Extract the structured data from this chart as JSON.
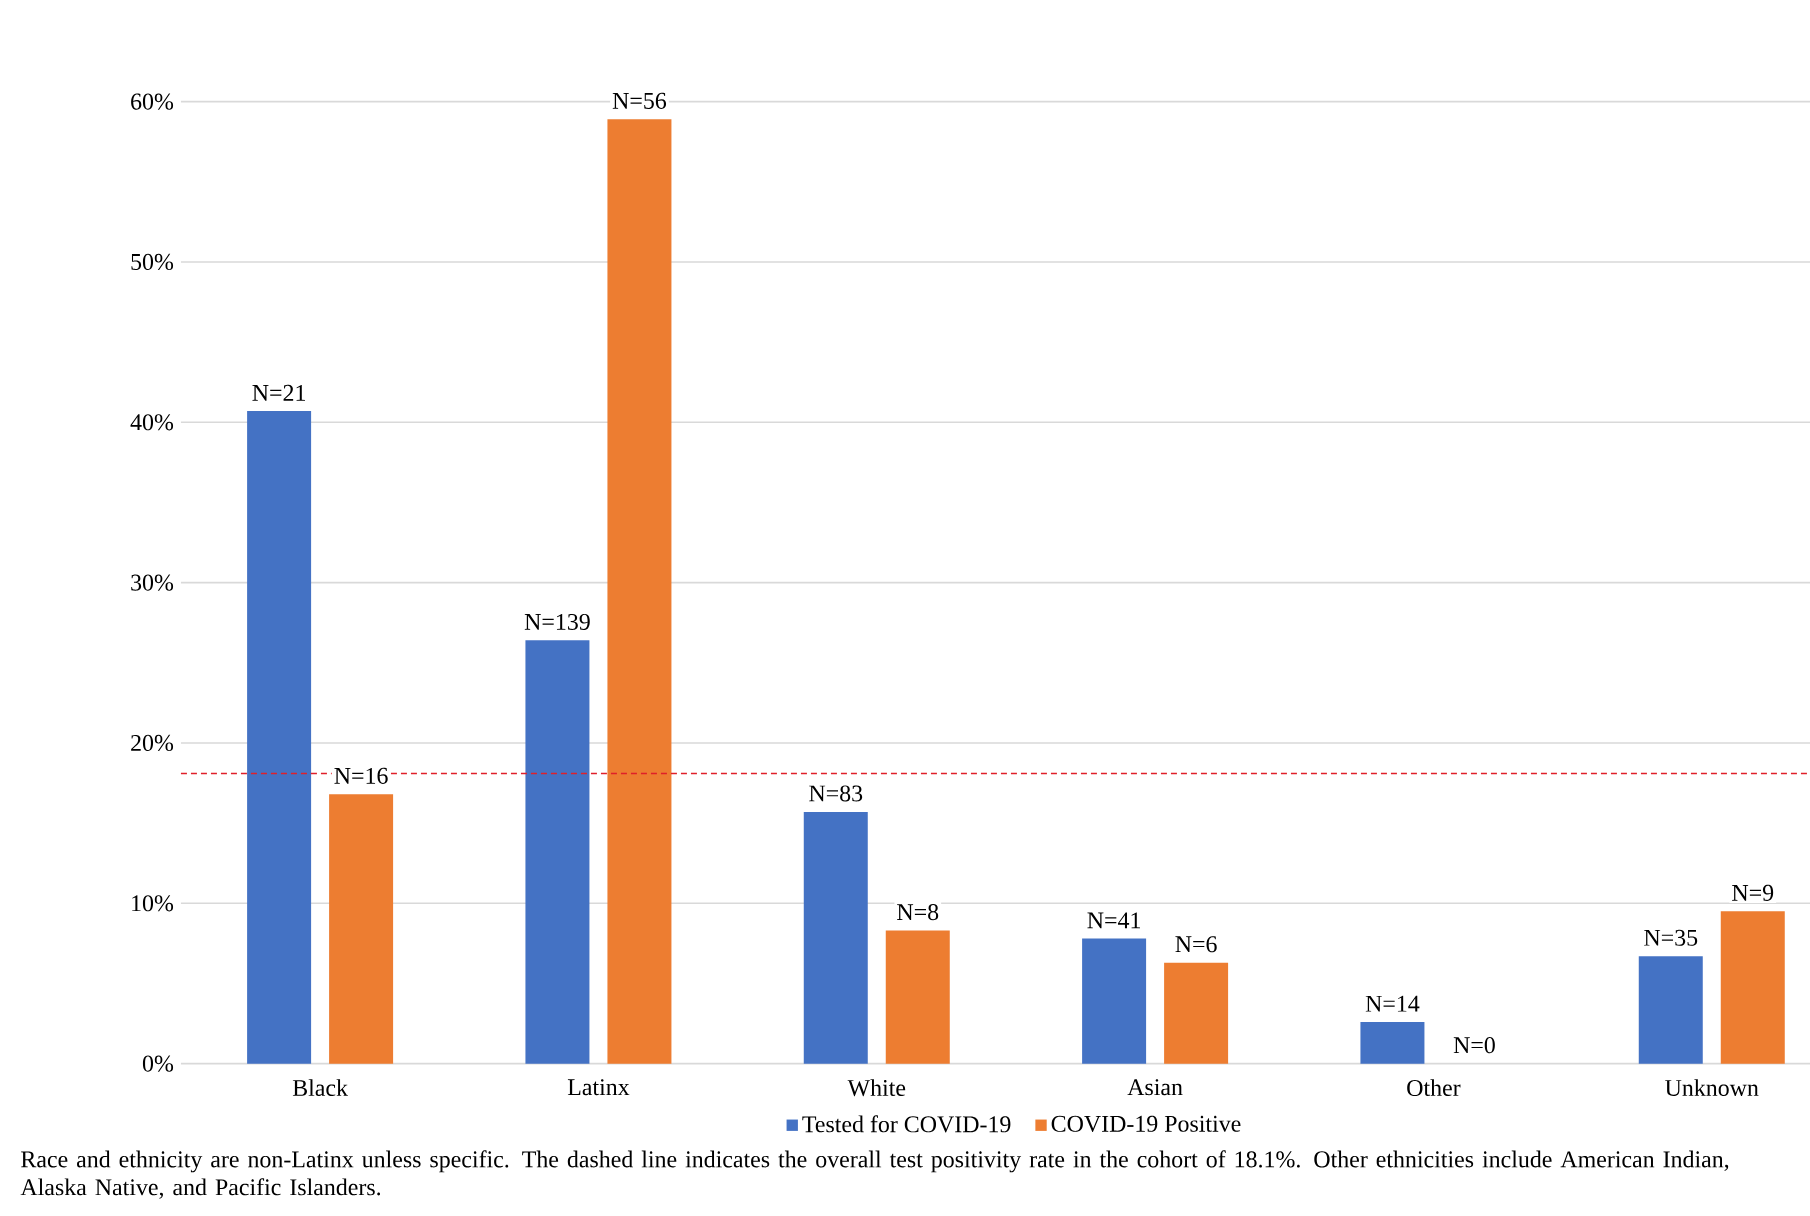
{
  "chart_data": {
    "type": "bar",
    "categories": [
      "Black",
      "Latinx",
      "White",
      "Asian",
      "Other",
      "Unknown"
    ],
    "series": [
      {
        "name": "Tested for COVID-19",
        "color": "#4472c4",
        "values": [
          40.7,
          26.4,
          15.7,
          7.8,
          2.6,
          6.7
        ]
      },
      {
        "name": "COVID-19 Positive",
        "color": "#ed7d31",
        "values": [
          16.8,
          58.9,
          8.3,
          6.3,
          0,
          9.5
        ]
      }
    ],
    "ylim": [
      0,
      60
    ],
    "yticks": [
      {
        "value": 0,
        "label": "0%"
      },
      {
        "value": 10,
        "label": "10%"
      },
      {
        "value": 20,
        "label": "20%"
      },
      {
        "value": 30,
        "label": "30%"
      },
      {
        "value": 40,
        "label": "40%"
      },
      {
        "value": 50,
        "label": "50%"
      },
      {
        "value": 60,
        "label": "60%"
      }
    ],
    "grid": "y",
    "legend": "bottom",
    "ref_lines": [
      {
        "axis": "y",
        "value": 18.1,
        "color": "#e0202a",
        "line_style": "dashed"
      }
    ],
    "annotations": [
      {
        "text": "N=21",
        "x": "Black",
        "y": 40.7
      },
      {
        "text": "N=139",
        "x": "Latinx",
        "y": 26.4
      },
      {
        "text": "N=83",
        "x": "White",
        "y": 15.7
      },
      {
        "text": "N=41",
        "x": "Asian",
        "y": 7.8
      },
      {
        "text": "N=14",
        "x": "Other",
        "y": 2.6
      },
      {
        "text": "N=35",
        "x": "Unknown",
        "y": 6.7
      },
      {
        "text": "N=16",
        "x": "Black",
        "y": 16.8
      },
      {
        "text": "N=56",
        "x": "Latinx",
        "y": 58.9
      },
      {
        "text": "N=8",
        "x": "White",
        "y": 8.3
      },
      {
        "text": "N=6",
        "x": "Asian",
        "y": 6.3
      },
      {
        "text": "N=0",
        "x": "Other",
        "y": 0
      },
      {
        "text": "N=9",
        "x": "Unknown",
        "y": 9.5
      },
      "Race and ethnicity are non-Latinx unless specific. The dashed line indicates the overall test positivity rate in the cohort of 18.1%. Other ethnicities include American Indian, Alaska Native, and Pacific Islanders."
    ]
  }
}
